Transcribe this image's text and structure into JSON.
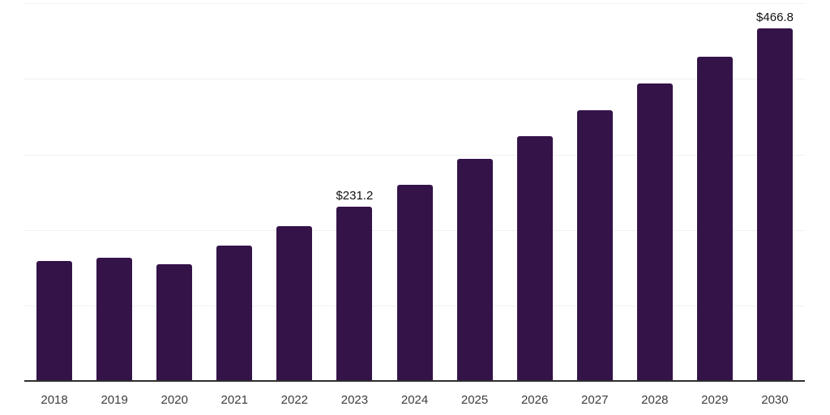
{
  "chart_data": {
    "type": "bar",
    "categories": [
      "2018",
      "2019",
      "2020",
      "2021",
      "2022",
      "2023",
      "2024",
      "2025",
      "2026",
      "2027",
      "2028",
      "2029",
      "2030"
    ],
    "values": [
      159.0,
      163.3,
      154.3,
      179.2,
      205.2,
      231.2,
      259.9,
      293.8,
      324.6,
      358.6,
      394.1,
      429.7,
      466.8
    ],
    "data_labels": {
      "2023": "$231.2",
      "2030": "$466.8"
    },
    "title": "",
    "xlabel": "",
    "ylabel": "",
    "ylim": [
      0,
      500
    ],
    "gridline_values": [
      100,
      200,
      300,
      400,
      500
    ],
    "grid": true,
    "legend_position": "none",
    "value_prefix": "$",
    "colors": {
      "bar": "#341349",
      "gridline": "#f1f1f1",
      "axis_line": "#2e2e2e",
      "x_label_text": "#3d3d3d",
      "data_label_text": "#121212",
      "background": "#ffffff"
    }
  }
}
